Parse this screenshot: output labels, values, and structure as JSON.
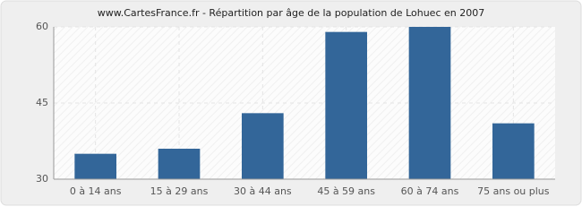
{
  "chart_data": {
    "type": "bar",
    "title": "www.CartesFrance.fr - Répartition par âge de la population de Lohuec en 2007",
    "categories": [
      "0 à 14 ans",
      "15 à 29 ans",
      "30 à 44 ans",
      "45 à 59 ans",
      "60 à 74 ans",
      "75 ans ou plus"
    ],
    "values": [
      35,
      36,
      43,
      59,
      60,
      41
    ],
    "color": "#336699",
    "ylim": [
      30,
      60
    ],
    "yticks": [
      30,
      45,
      60
    ],
    "grid": true
  }
}
